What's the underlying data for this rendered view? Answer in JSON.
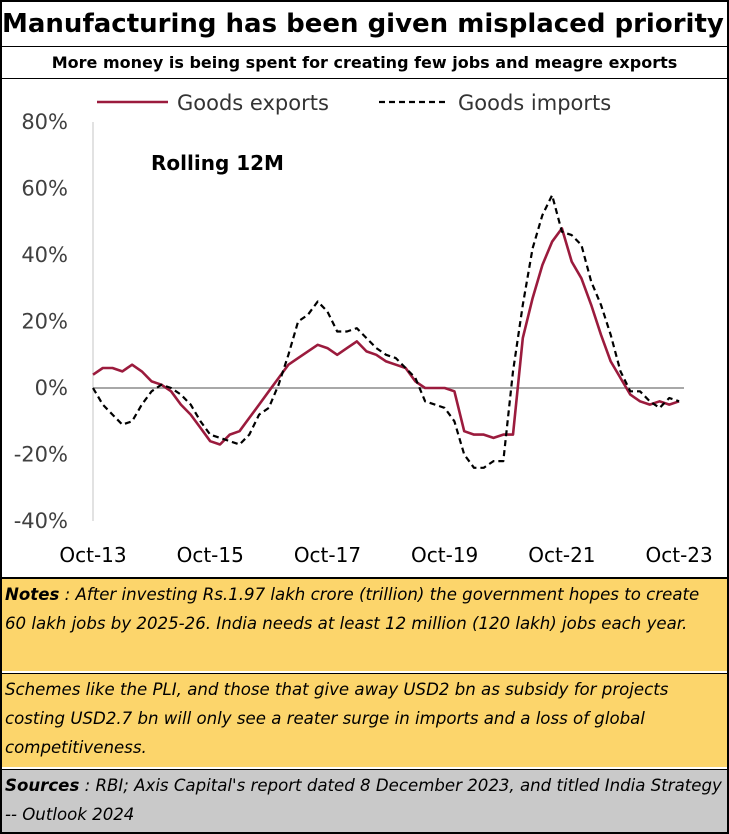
{
  "header": {
    "title": "Manufacturing has been given misplaced priority",
    "subtitle": "More money is being spent for creating few jobs and meagre exports"
  },
  "chart_data": {
    "type": "line",
    "annotation": "Rolling 12M",
    "ylim": [
      -40,
      80
    ],
    "y_ticks": [
      -40,
      -20,
      0,
      20,
      40,
      60,
      80
    ],
    "y_tick_labels": [
      "-40%",
      "-20%",
      "0%",
      "20%",
      "40%",
      "60%",
      "80%"
    ],
    "x_ticks": [
      "Oct-13",
      "Oct-15",
      "Oct-17",
      "Oct-19",
      "Oct-21",
      "Oct-23"
    ],
    "x_start": "2013-10",
    "x_end": "2023-11",
    "grid": false,
    "legend_position": "top",
    "series": [
      {
        "name": "Goods exports",
        "style": "solid",
        "color": "#9b1b3d",
        "points": [
          [
            "2013-10",
            4
          ],
          [
            "2013-12",
            6
          ],
          [
            "2014-02",
            6
          ],
          [
            "2014-04",
            5
          ],
          [
            "2014-06",
            7
          ],
          [
            "2014-08",
            5
          ],
          [
            "2014-10",
            2
          ],
          [
            "2014-12",
            1
          ],
          [
            "2015-02",
            -1
          ],
          [
            "2015-04",
            -5
          ],
          [
            "2015-06",
            -8
          ],
          [
            "2015-08",
            -12
          ],
          [
            "2015-10",
            -16
          ],
          [
            "2015-12",
            -17
          ],
          [
            "2016-02",
            -14
          ],
          [
            "2016-04",
            -13
          ],
          [
            "2016-06",
            -9
          ],
          [
            "2016-08",
            -5
          ],
          [
            "2016-10",
            -1
          ],
          [
            "2016-12",
            3
          ],
          [
            "2017-02",
            7
          ],
          [
            "2017-04",
            9
          ],
          [
            "2017-06",
            11
          ],
          [
            "2017-08",
            13
          ],
          [
            "2017-10",
            12
          ],
          [
            "2017-12",
            10
          ],
          [
            "2018-02",
            12
          ],
          [
            "2018-04",
            14
          ],
          [
            "2018-06",
            11
          ],
          [
            "2018-08",
            10
          ],
          [
            "2018-10",
            8
          ],
          [
            "2018-12",
            7
          ],
          [
            "2019-02",
            6
          ],
          [
            "2019-04",
            2
          ],
          [
            "2019-06",
            0
          ],
          [
            "2019-08",
            0
          ],
          [
            "2019-10",
            0
          ],
          [
            "2019-12",
            -1
          ],
          [
            "2020-02",
            -13
          ],
          [
            "2020-04",
            -14
          ],
          [
            "2020-06",
            -14
          ],
          [
            "2020-08",
            -15
          ],
          [
            "2020-10",
            -14
          ],
          [
            "2020-12",
            -14
          ],
          [
            "2021-02",
            15
          ],
          [
            "2021-04",
            27
          ],
          [
            "2021-06",
            37
          ],
          [
            "2021-08",
            44
          ],
          [
            "2021-10",
            48
          ],
          [
            "2021-12",
            38
          ],
          [
            "2022-02",
            33
          ],
          [
            "2022-04",
            25
          ],
          [
            "2022-06",
            16
          ],
          [
            "2022-08",
            8
          ],
          [
            "2022-10",
            3
          ],
          [
            "2022-12",
            -2
          ],
          [
            "2023-02",
            -4
          ],
          [
            "2023-04",
            -5
          ],
          [
            "2023-06",
            -4
          ],
          [
            "2023-08",
            -5
          ],
          [
            "2023-10",
            -4
          ]
        ]
      },
      {
        "name": "Goods imports",
        "style": "dashed",
        "color": "#000000",
        "points": [
          [
            "2013-10",
            0
          ],
          [
            "2013-12",
            -5
          ],
          [
            "2014-02",
            -8
          ],
          [
            "2014-04",
            -11
          ],
          [
            "2014-06",
            -10
          ],
          [
            "2014-08",
            -5
          ],
          [
            "2014-10",
            -1
          ],
          [
            "2014-12",
            1
          ],
          [
            "2015-02",
            0
          ],
          [
            "2015-04",
            -2
          ],
          [
            "2015-06",
            -5
          ],
          [
            "2015-08",
            -10
          ],
          [
            "2015-10",
            -14
          ],
          [
            "2015-12",
            -15
          ],
          [
            "2016-02",
            -16
          ],
          [
            "2016-04",
            -17
          ],
          [
            "2016-06",
            -14
          ],
          [
            "2016-08",
            -8
          ],
          [
            "2016-10",
            -6
          ],
          [
            "2016-12",
            1
          ],
          [
            "2017-02",
            10
          ],
          [
            "2017-04",
            20
          ],
          [
            "2017-06",
            22
          ],
          [
            "2017-08",
            26
          ],
          [
            "2017-10",
            23
          ],
          [
            "2017-12",
            17
          ],
          [
            "2018-02",
            17
          ],
          [
            "2018-04",
            18
          ],
          [
            "2018-06",
            15
          ],
          [
            "2018-08",
            12
          ],
          [
            "2018-10",
            10
          ],
          [
            "2018-12",
            9
          ],
          [
            "2019-02",
            6
          ],
          [
            "2019-04",
            3
          ],
          [
            "2019-06",
            -4
          ],
          [
            "2019-08",
            -5
          ],
          [
            "2019-10",
            -6
          ],
          [
            "2019-12",
            -10
          ],
          [
            "2020-02",
            -20
          ],
          [
            "2020-04",
            -24
          ],
          [
            "2020-06",
            -24
          ],
          [
            "2020-08",
            -22
          ],
          [
            "2020-10",
            -22
          ],
          [
            "2020-12",
            5
          ],
          [
            "2021-02",
            25
          ],
          [
            "2021-04",
            42
          ],
          [
            "2021-06",
            52
          ],
          [
            "2021-08",
            58
          ],
          [
            "2021-10",
            47
          ],
          [
            "2021-12",
            46
          ],
          [
            "2022-02",
            43
          ],
          [
            "2022-04",
            32
          ],
          [
            "2022-06",
            25
          ],
          [
            "2022-08",
            16
          ],
          [
            "2022-10",
            5
          ],
          [
            "2022-12",
            -1
          ],
          [
            "2023-02",
            -1
          ],
          [
            "2023-04",
            -4
          ],
          [
            "2023-06",
            -6
          ],
          [
            "2023-08",
            -3
          ],
          [
            "2023-10",
            -4
          ]
        ]
      }
    ]
  },
  "notes": {
    "label": "Notes",
    "sep": " : ",
    "text": "After investing Rs.1.97 lakh crore (trillion) the government hopes to create 60 lakh jobs by 2025-26.  India needs at least 12 million (120 lakh) jobs each year."
  },
  "schemes": {
    "text": "Schemes like the PLI, and those that give away USD2 bn as subsidy for projects costing USD2.7 bn will only see a reater surge in imports and a loss of global competitiveness."
  },
  "sources": {
    "label": "Sources",
    "sep": " : ",
    "text": "RBI; Axis Capital's report dated 8 December 2023, and titled India Strategy -- Outlook 2024"
  }
}
